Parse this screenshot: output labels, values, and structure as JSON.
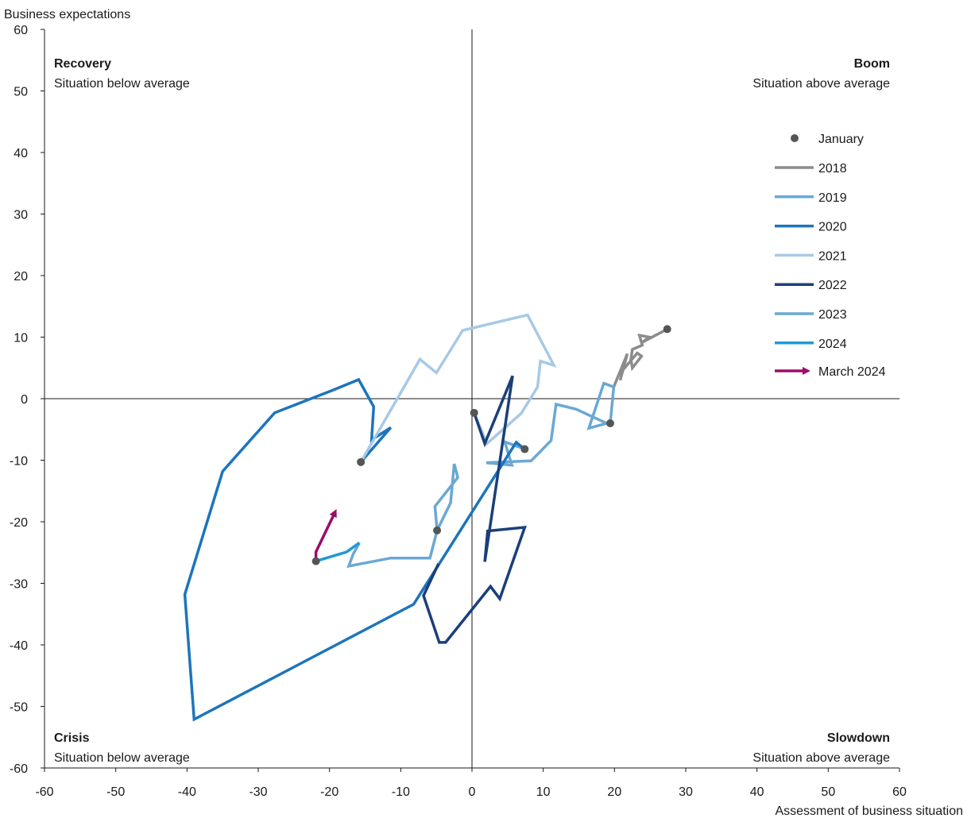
{
  "chart_data": {
    "type": "line",
    "ylabel": "Business expectations",
    "xlabel": "Assessment of business situation",
    "xlim": [
      -60,
      60
    ],
    "ylim": [
      -60,
      60
    ],
    "x_ticks": [
      -60,
      -50,
      -40,
      -30,
      -20,
      -10,
      0,
      10,
      20,
      30,
      40,
      50,
      60
    ],
    "y_ticks": [
      -60,
      -50,
      -40,
      -30,
      -20,
      -10,
      0,
      10,
      20,
      30,
      40,
      50,
      60
    ],
    "grid": false,
    "legend_position": "right",
    "quadrants": {
      "top_left": {
        "title": "Recovery",
        "subtitle": "Situation below average"
      },
      "top_right": {
        "title": "Boom",
        "subtitle": "Situation above average"
      },
      "bottom_left": {
        "title": "Crisis",
        "subtitle": "Situation below average"
      },
      "bottom_right": {
        "title": "Slowdown",
        "subtitle": "Situation above average"
      }
    },
    "january_label": "January",
    "january_color": "#555555",
    "series": [
      {
        "name": "2018",
        "color": "#8c8c8c",
        "points": [
          [
            27.4,
            11.3
          ],
          [
            23.8,
            9.1
          ],
          [
            24.9,
            10.0
          ],
          [
            23.5,
            10.3
          ],
          [
            23.9,
            8.7
          ],
          [
            22.5,
            8.0
          ],
          [
            22.3,
            6.4
          ],
          [
            22.5,
            5.0
          ],
          [
            23.8,
            6.9
          ],
          [
            23.2,
            7.4
          ],
          [
            21.2,
            4.7
          ],
          [
            20.8,
            3.0
          ],
          [
            21.8,
            7.3
          ],
          [
            19.9,
            1.9
          ]
        ]
      },
      {
        "name": "2019",
        "color": "#6aa8d4",
        "points": [
          [
            19.4,
            -4.0
          ],
          [
            19.9,
            1.9
          ],
          [
            18.5,
            2.5
          ],
          [
            16.4,
            -4.8
          ],
          [
            18.9,
            -4.0
          ],
          [
            14.6,
            -1.7
          ],
          [
            11.8,
            -0.9
          ],
          [
            11.1,
            -6.8
          ],
          [
            8.3,
            -10.1
          ],
          [
            2.0,
            -10.4
          ],
          [
            5.6,
            -10.8
          ],
          [
            4.6,
            -7.0
          ],
          [
            7.4,
            -8.2
          ]
        ]
      },
      {
        "name": "2020",
        "color": "#1c75bc",
        "points": [
          [
            7.4,
            -8.2
          ],
          [
            6.2,
            -7.1
          ],
          [
            -8.2,
            -33.4
          ],
          [
            -39.0,
            -52.1
          ],
          [
            -40.3,
            -31.8
          ],
          [
            -35.0,
            -11.8
          ],
          [
            -27.7,
            -2.3
          ],
          [
            -19.7,
            1.3
          ],
          [
            -15.9,
            3.1
          ],
          [
            -13.8,
            -1.3
          ],
          [
            -14.1,
            -6.7
          ],
          [
            -11.4,
            -4.7
          ],
          [
            -15.6,
            -10.3
          ]
        ]
      },
      {
        "name": "2021",
        "color": "#a7c9e6",
        "points": [
          [
            -15.6,
            -10.3
          ],
          [
            -7.3,
            6.4
          ],
          [
            -5.0,
            4.2
          ],
          [
            -1.3,
            11.1
          ],
          [
            7.8,
            13.6
          ],
          [
            11.5,
            5.4
          ],
          [
            9.6,
            6.1
          ],
          [
            9.2,
            1.9
          ],
          [
            6.9,
            -2.4
          ],
          [
            2.1,
            -7.3
          ],
          [
            0.3,
            -2.3
          ]
        ]
      },
      {
        "name": "2022",
        "color": "#1b3f7a",
        "points": [
          [
            0.3,
            -2.3
          ],
          [
            1.8,
            -7.3
          ],
          [
            5.7,
            3.7
          ],
          [
            1.8,
            -26.5
          ],
          [
            2.2,
            -21.5
          ],
          [
            7.4,
            -20.9
          ],
          [
            3.9,
            -32.5
          ],
          [
            2.6,
            -30.5
          ],
          [
            -3.7,
            -39.6
          ],
          [
            -4.6,
            -39.6
          ],
          [
            -6.8,
            -32.0
          ],
          [
            -4.7,
            -26.8
          ]
        ]
      },
      {
        "name": "2023",
        "color": "#6aa8d4",
        "points": [
          [
            -4.9,
            -21.4
          ],
          [
            -3.0,
            -16.9
          ],
          [
            -2.5,
            -10.6
          ],
          [
            -2.0,
            -12.8
          ],
          [
            -5.2,
            -17.5
          ],
          [
            -4.9,
            -21.4
          ],
          [
            -5.9,
            -25.9
          ],
          [
            -11.4,
            -25.9
          ],
          [
            -17.3,
            -27.2
          ],
          [
            -16.7,
            -25.3
          ],
          [
            -15.8,
            -23.4
          ]
        ]
      },
      {
        "name": "2024",
        "color": "#1f9ad6",
        "points": [
          [
            -21.9,
            -26.4
          ],
          [
            -17.6,
            -24.9
          ],
          [
            -15.8,
            -23.4
          ]
        ]
      }
    ],
    "january_points": [
      [
        27.4,
        11.3
      ],
      [
        19.4,
        -4.0
      ],
      [
        7.4,
        -8.2
      ],
      [
        -15.6,
        -10.3
      ],
      [
        0.3,
        -2.3
      ],
      [
        -4.9,
        -21.4
      ],
      [
        -21.9,
        -26.4
      ]
    ],
    "march_2024": {
      "name": "March 2024",
      "color": "#9e0b6a",
      "points": [
        [
          -21.9,
          -26.4
        ],
        [
          -21.9,
          -24.9
        ],
        [
          -19.2,
          -18.4
        ]
      ]
    }
  }
}
